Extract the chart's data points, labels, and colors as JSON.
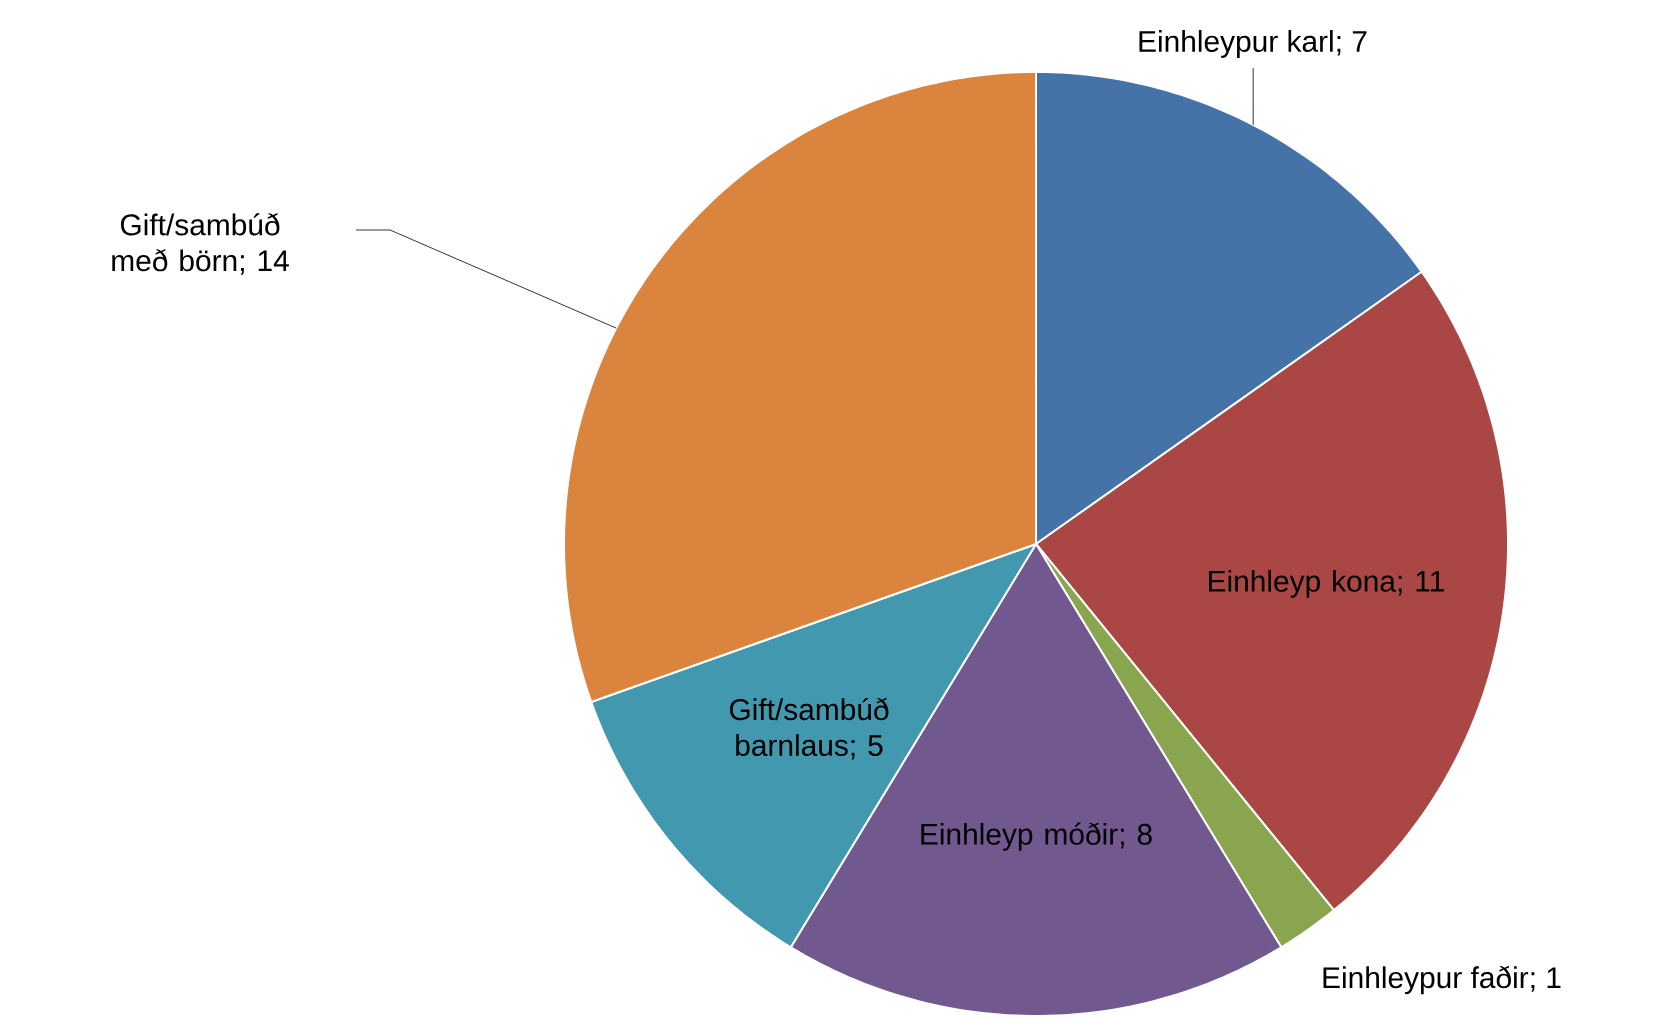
{
  "chart_data": {
    "type": "pie",
    "categories": [
      "Einhleypur karl",
      "Einhleyp kona",
      "Einhleypur faðir",
      "Einhleyp móðir",
      "Gift/sambúð barnlaus",
      "Gift/sambúð með börn"
    ],
    "values": [
      7,
      11,
      1,
      8,
      5,
      14
    ],
    "colors": [
      "#4572a7",
      "#aa4643",
      "#89a54e",
      "#71588f",
      "#4198af",
      "#db843d"
    ],
    "value_labels": [
      "; 7",
      "; 11",
      "; 1",
      "; 8",
      "; 5",
      "; 14"
    ]
  }
}
